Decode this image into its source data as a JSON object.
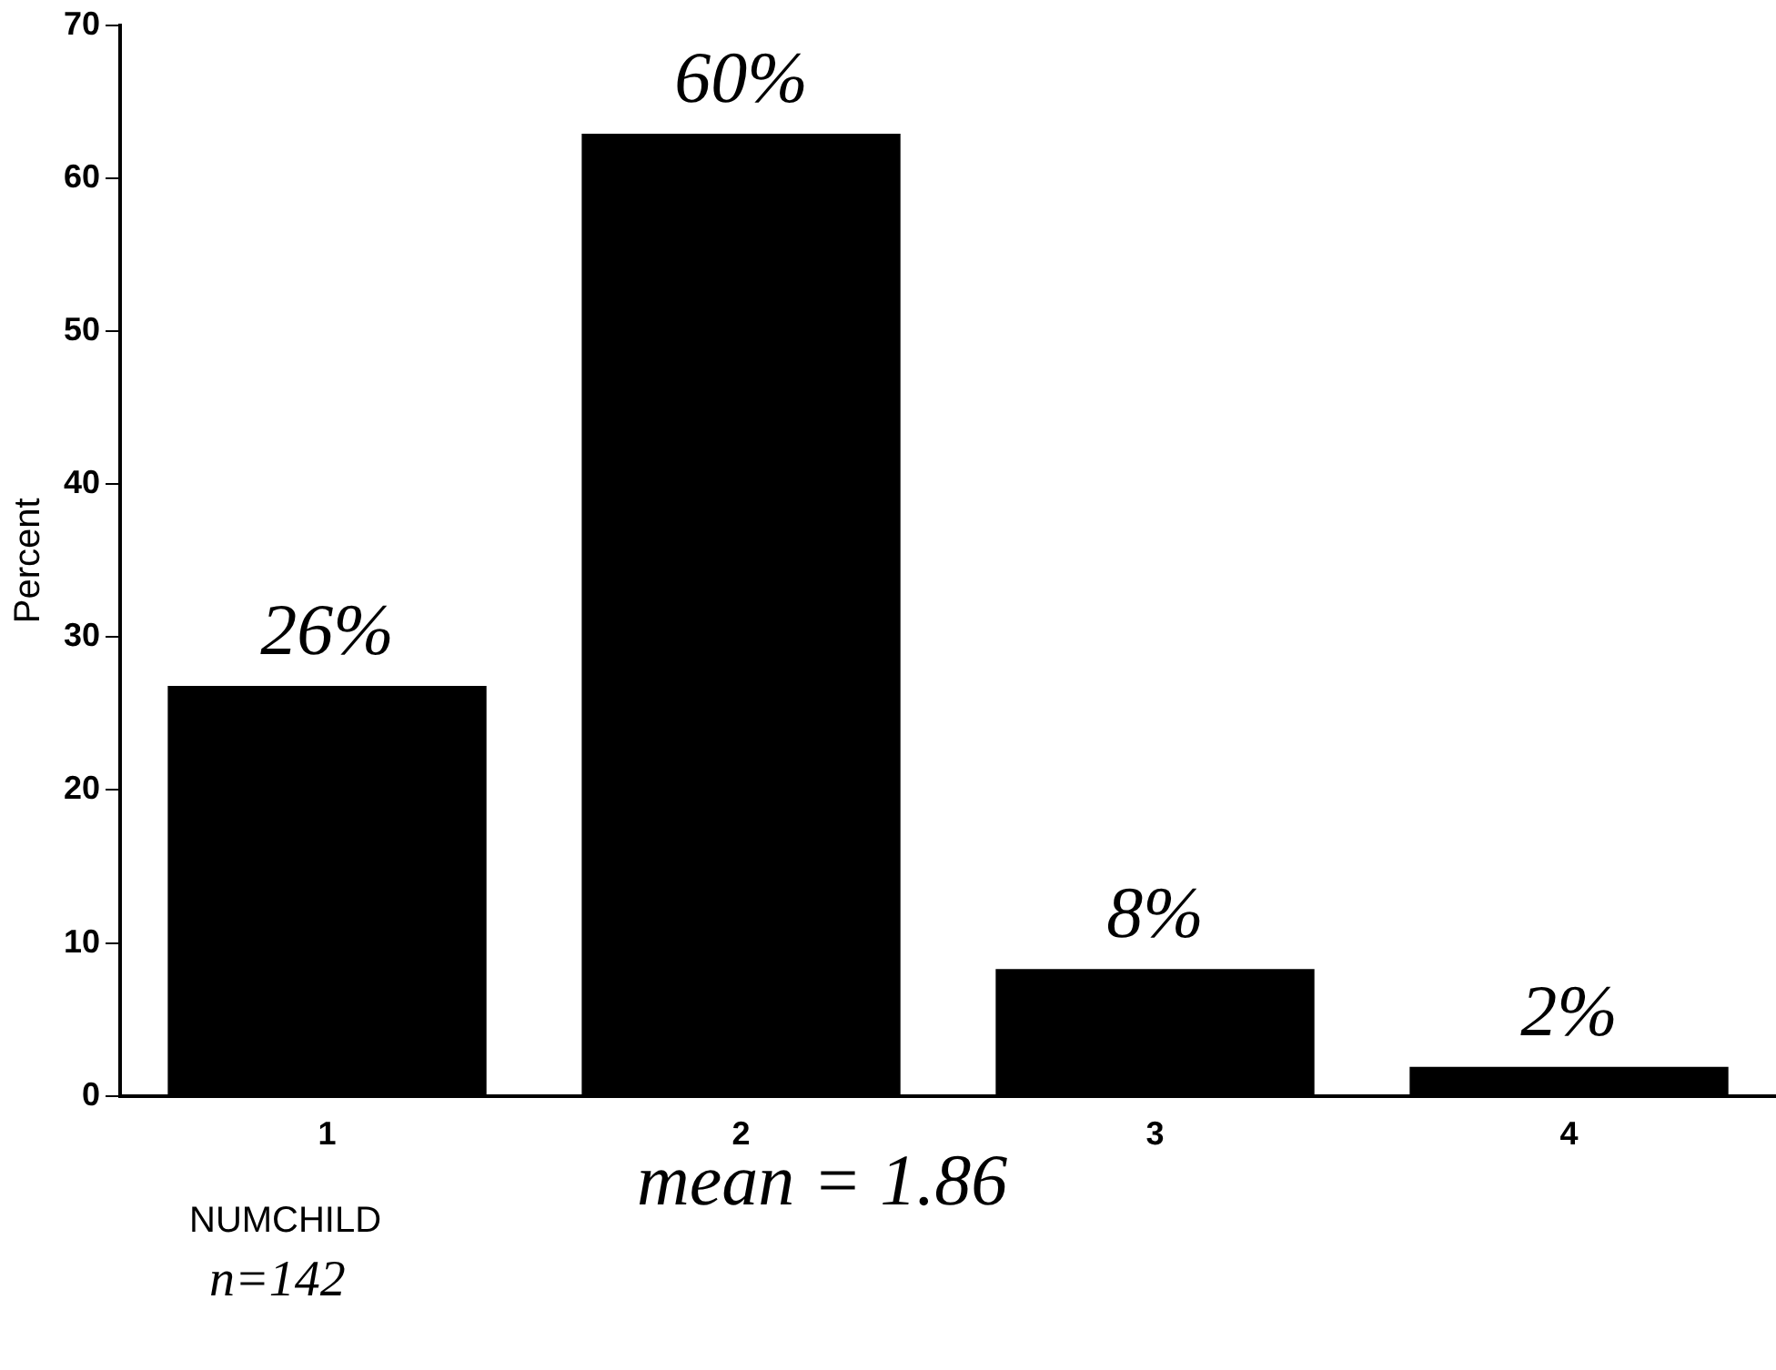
{
  "chart_data": {
    "type": "bar",
    "ylabel": "Percent",
    "xlabel": "NUMCHILD",
    "categories": [
      "1",
      "2",
      "3",
      "4"
    ],
    "values": [
      26.8,
      62.9,
      8.3,
      1.9
    ],
    "color": "#000000",
    "ylim": [
      0,
      70
    ],
    "yticks": [
      0,
      10,
      20,
      30,
      40,
      50,
      60,
      70
    ],
    "grid": false,
    "legend": false,
    "annotations": [
      {
        "text": "26%",
        "x": "1",
        "y": 26.8
      },
      {
        "text": "60%",
        "x": "2",
        "y": 62.9
      },
      {
        "text": "8%",
        "x": "3",
        "y": 8.3
      },
      {
        "text": "2%",
        "x": "4",
        "y": 1.9
      },
      "mean = 1.86",
      "n=142"
    ]
  }
}
